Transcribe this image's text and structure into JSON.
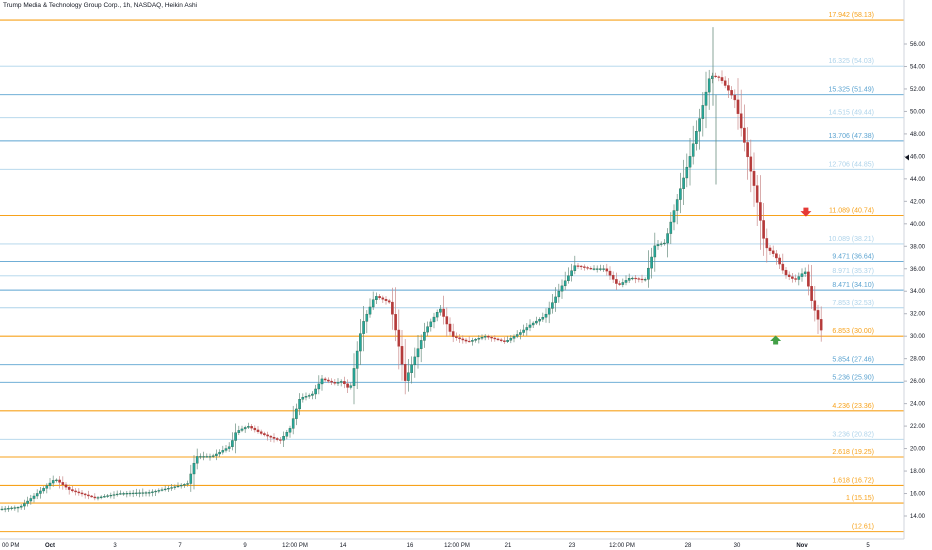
{
  "header": {
    "title": "Trump Media & Technology Group Corp., 1h, NASDAQ, Heikin Ashi"
  },
  "colors": {
    "orange": "#f7a21b",
    "blue": "#5ba3d0",
    "light_blue": "#aed3ea",
    "up": "#26a69a",
    "up_dark": "#2e6b4f",
    "down": "#b53a3a",
    "arrow_down": "#e53935",
    "arrow_up": "#43a047"
  },
  "chart_data": {
    "type": "candlestick",
    "chart_style": "Heikin Ashi",
    "interval": "1h",
    "ylim": [
      13,
      59
    ],
    "y_ticks": [
      "14.00",
      "16.00",
      "18.00",
      "20.00",
      "22.00",
      "24.00",
      "26.00",
      "28.00",
      "30.00",
      "32.00",
      "34.00",
      "36.00",
      "38.00",
      "40.00",
      "42.00",
      "44.00",
      "46.00",
      "48.00",
      "50.00",
      "52.00",
      "54.00",
      "56.00"
    ],
    "x_ticks": [
      "00 PM",
      "Oct",
      "3",
      "7",
      "9",
      "12:00 PM",
      "14",
      "16",
      "12:00 PM",
      "21",
      "23",
      "12:00 PM",
      "28",
      "30",
      "Nov",
      "5"
    ],
    "levels": [
      {
        "label": "17.942 (58.13)",
        "price": 58.13,
        "style": "orange"
      },
      {
        "label": "16.325 (54.03)",
        "price": 54.03,
        "style": "light_blue"
      },
      {
        "label": "15.325 (51.49)",
        "price": 51.49,
        "style": "blue"
      },
      {
        "label": "14.515 (49.44)",
        "price": 49.44,
        "style": "light_blue"
      },
      {
        "label": "13.706 (47.38)",
        "price": 47.38,
        "style": "blue"
      },
      {
        "label": "12.706 (44.85)",
        "price": 44.85,
        "style": "light_blue"
      },
      {
        "label": "11.089 (40.74)",
        "price": 40.74,
        "style": "orange"
      },
      {
        "label": "10.089 (38.21)",
        "price": 38.21,
        "style": "light_blue"
      },
      {
        "label": "9.471 (36.64)",
        "price": 36.64,
        "style": "blue"
      },
      {
        "label": "8.971 (35.37)",
        "price": 35.37,
        "style": "light_blue"
      },
      {
        "label": "8.471 (34.10)",
        "price": 34.1,
        "style": "blue"
      },
      {
        "label": "7.853 (32.53)",
        "price": 32.53,
        "style": "light_blue"
      },
      {
        "label": "6.853 (30.00)",
        "price": 30.0,
        "style": "orange"
      },
      {
        "label": "5.854 (27.46)",
        "price": 27.46,
        "style": "blue"
      },
      {
        "label": "5.236 (25.90)",
        "price": 25.9,
        "style": "blue"
      },
      {
        "label": "4.236 (23.36)",
        "price": 23.36,
        "style": "orange"
      },
      {
        "label": "3.236 (20.82)",
        "price": 20.82,
        "style": "light_blue"
      },
      {
        "label": "2.618 (19.25)",
        "price": 19.25,
        "style": "orange"
      },
      {
        "label": "1.618 (16.72)",
        "price": 16.72,
        "style": "orange"
      },
      {
        "label": "1 (15.15)",
        "price": 15.15,
        "style": "orange"
      },
      {
        "label": "(12.61)",
        "price": 12.61,
        "style": "orange"
      }
    ],
    "price_path": [
      [
        0,
        14.6
      ],
      [
        20,
        14.8
      ],
      [
        40,
        16.2
      ],
      [
        55,
        17.3
      ],
      [
        70,
        16.3
      ],
      [
        95,
        15.6
      ],
      [
        120,
        16.0
      ],
      [
        150,
        16.1
      ],
      [
        175,
        16.6
      ],
      [
        188,
        16.9
      ],
      [
        196,
        19.3
      ],
      [
        212,
        19.3
      ],
      [
        230,
        20.2
      ],
      [
        236,
        21.5
      ],
      [
        248,
        22.0
      ],
      [
        262,
        21.3
      ],
      [
        280,
        20.7
      ],
      [
        290,
        21.8
      ],
      [
        300,
        24.5
      ],
      [
        312,
        24.8
      ],
      [
        322,
        26.2
      ],
      [
        335,
        25.8
      ],
      [
        342,
        26.0
      ],
      [
        350,
        25.2
      ],
      [
        362,
        31.0
      ],
      [
        375,
        33.6
      ],
      [
        390,
        33.0
      ],
      [
        398,
        29.5
      ],
      [
        405,
        26.0
      ],
      [
        415,
        28.2
      ],
      [
        425,
        30.5
      ],
      [
        440,
        32.5
      ],
      [
        452,
        30.0
      ],
      [
        468,
        29.5
      ],
      [
        485,
        30.0
      ],
      [
        505,
        29.5
      ],
      [
        520,
        30.3
      ],
      [
        530,
        31.0
      ],
      [
        545,
        31.8
      ],
      [
        560,
        34.2
      ],
      [
        575,
        36.3
      ],
      [
        590,
        36.0
      ],
      [
        605,
        36.0
      ],
      [
        618,
        34.5
      ],
      [
        630,
        35.2
      ],
      [
        645,
        35.0
      ],
      [
        655,
        38.1
      ],
      [
        665,
        38.3
      ],
      [
        675,
        41.5
      ],
      [
        690,
        46.0
      ],
      [
        700,
        49.5
      ],
      [
        710,
        53.2
      ],
      [
        720,
        53.0
      ],
      [
        735,
        51.0
      ],
      [
        745,
        47.0
      ],
      [
        755,
        43.0
      ],
      [
        765,
        38.0
      ],
      [
        775,
        37.2
      ],
      [
        785,
        35.5
      ],
      [
        795,
        35.0
      ],
      [
        805,
        35.8
      ],
      [
        812,
        33.0
      ],
      [
        818,
        31.5
      ],
      [
        822,
        30.3
      ]
    ],
    "annotations": [
      {
        "type": "arrow-down",
        "price": 41.0,
        "x_frac": 0.8915
      },
      {
        "type": "arrow-up",
        "price": 29.7,
        "x_frac": 0.858
      }
    ]
  }
}
